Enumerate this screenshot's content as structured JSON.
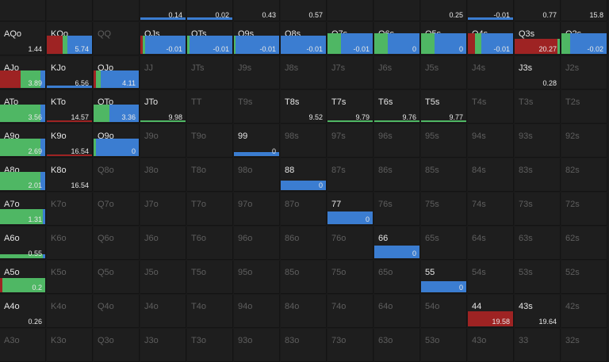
{
  "cols": 13,
  "colors": {
    "raise": "#3b7dd1",
    "call": "#4fb764",
    "fold": "#9e2323",
    "dim_text": "#5e5e5e",
    "active_text": "#e6e6e6"
  },
  "cells": [
    [
      "",
      "",
      "",
      {
        "v": "0.14",
        "bars": [
          {
            "c": "raise",
            "w": 1,
            "h": 0.1
          }
        ]
      },
      {
        "v": "0.02",
        "bars": [
          {
            "c": "raise",
            "w": 1,
            "h": 0.1
          }
        ]
      },
      {
        "v": "0.43"
      },
      {
        "v": "0.57"
      },
      {
        "v": ""
      },
      {
        "v": ""
      },
      {
        "v": "0.25"
      },
      {
        "v": "-0.01",
        "bars": [
          {
            "c": "raise",
            "w": 1,
            "h": 0.1
          }
        ]
      },
      {
        "v": "0.77"
      },
      {
        "v": "15.8"
      }
    ],
    [
      {
        "h": "AQo",
        "a": 1,
        "v": "1.44"
      },
      {
        "h": "KQo",
        "a": 1,
        "v": "5.74",
        "bars": [
          {
            "c": "fold",
            "w": 0.35,
            "h": 0.9
          },
          {
            "c": "call",
            "w": 0.1,
            "h": 0.9
          },
          {
            "c": "raise",
            "w": 0.55,
            "h": 0.9
          }
        ]
      },
      {
        "h": "QQ",
        "a": 0
      },
      {
        "h": "QJs",
        "a": 1,
        "v": "-0.01",
        "bars": [
          {
            "c": "fold",
            "w": 0.05,
            "h": 0.9
          },
          {
            "c": "call",
            "w": 0.05,
            "h": 0.9
          },
          {
            "c": "raise",
            "w": 0.9,
            "h": 0.9
          }
        ]
      },
      {
        "h": "QTs",
        "a": 1,
        "v": "-0.01",
        "bars": [
          {
            "c": "call",
            "w": 0.05,
            "h": 0.9
          },
          {
            "c": "raise",
            "w": 0.95,
            "h": 0.9
          }
        ]
      },
      {
        "h": "Q9s",
        "a": 1,
        "v": "-0.01",
        "bars": [
          {
            "c": "call",
            "w": 0.03,
            "h": 0.9
          },
          {
            "c": "raise",
            "w": 0.97,
            "h": 0.9
          }
        ]
      },
      {
        "h": "Q8s",
        "a": 1,
        "v": "-0.01",
        "bars": [
          {
            "c": "raise",
            "w": 1,
            "h": 0.9
          }
        ]
      },
      {
        "h": "Q7s",
        "a": 1,
        "v": "-0.01",
        "bars": [
          {
            "c": "call",
            "w": 0.3,
            "h": 1
          },
          {
            "c": "raise",
            "w": 0.7,
            "h": 1
          }
        ]
      },
      {
        "h": "Q6s",
        "a": 1,
        "v": "0",
        "bars": [
          {
            "c": "call",
            "w": 0.3,
            "h": 1
          },
          {
            "c": "raise",
            "w": 0.7,
            "h": 1
          }
        ]
      },
      {
        "h": "Q5s",
        "a": 1,
        "v": "0",
        "bars": [
          {
            "c": "call",
            "w": 0.3,
            "h": 1
          },
          {
            "c": "raise",
            "w": 0.7,
            "h": 1
          }
        ]
      },
      {
        "h": "Q4s",
        "a": 1,
        "v": "-0.01",
        "bars": [
          {
            "c": "fold",
            "w": 0.15,
            "h": 1
          },
          {
            "c": "call",
            "w": 0.15,
            "h": 1
          },
          {
            "c": "raise",
            "w": 0.7,
            "h": 1
          }
        ]
      },
      {
        "h": "Q3s",
        "a": 1,
        "v": "20.27",
        "bars": [
          {
            "c": "fold",
            "w": 0.95,
            "h": 0.75
          },
          {
            "c": "call",
            "w": 0.05,
            "h": 0.75
          }
        ]
      },
      {
        "h": "Q2s",
        "a": 1,
        "v": "-0.02",
        "bars": [
          {
            "c": "call",
            "w": 0.2,
            "h": 1
          },
          {
            "c": "raise",
            "w": 0.8,
            "h": 1
          }
        ]
      }
    ],
    [
      {
        "h": "AJo",
        "a": 1,
        "v": "3.89",
        "bars": [
          {
            "c": "fold",
            "w": 0.45,
            "h": 0.85
          },
          {
            "c": "call",
            "w": 0.45,
            "h": 0.85
          },
          {
            "c": "raise",
            "w": 0.1,
            "h": 0.85
          }
        ]
      },
      {
        "h": "KJo",
        "a": 1,
        "v": "6.56",
        "bars": [
          {
            "c": "raise",
            "w": 1,
            "h": 0.1
          }
        ]
      },
      {
        "h": "QJo",
        "a": 1,
        "v": "4.11",
        "bars": [
          {
            "c": "fold",
            "w": 0.05,
            "h": 0.85
          },
          {
            "c": "call",
            "w": 0.1,
            "h": 0.85
          },
          {
            "c": "raise",
            "w": 0.85,
            "h": 0.85
          }
        ]
      },
      {
        "h": "JJ",
        "a": 0
      },
      {
        "h": "JTs",
        "a": 0
      },
      {
        "h": "J9s",
        "a": 0
      },
      {
        "h": "J8s",
        "a": 0
      },
      {
        "h": "J7s",
        "a": 0
      },
      {
        "h": "J6s",
        "a": 0
      },
      {
        "h": "J5s",
        "a": 0
      },
      {
        "h": "J4s",
        "a": 0
      },
      {
        "h": "J3s",
        "a": 1,
        "v": "0.28"
      },
      {
        "h": "J2s",
        "a": 0
      }
    ],
    [
      {
        "h": "ATo",
        "a": 1,
        "v": "3.56",
        "bars": [
          {
            "c": "call",
            "w": 0.9,
            "h": 0.85
          },
          {
            "c": "raise",
            "w": 0.1,
            "h": 0.85
          }
        ]
      },
      {
        "h": "KTo",
        "a": 1,
        "v": "14.57",
        "bars": [
          {
            "c": "fold",
            "w": 1,
            "h": 0.06
          }
        ]
      },
      {
        "h": "QTo",
        "a": 1,
        "v": "3.36",
        "bars": [
          {
            "c": "call",
            "w": 0.35,
            "h": 0.85
          },
          {
            "c": "raise",
            "w": 0.65,
            "h": 0.85
          }
        ]
      },
      {
        "h": "JTo",
        "a": 1,
        "v": "9.98",
        "bars": [
          {
            "c": "call",
            "w": 1,
            "h": 0.06
          }
        ]
      },
      {
        "h": "TT",
        "a": 0
      },
      {
        "h": "T9s",
        "a": 0
      },
      {
        "h": "T8s",
        "a": 1,
        "v": "9.52"
      },
      {
        "h": "T7s",
        "a": 1,
        "v": "9.79",
        "bars": [
          {
            "c": "call",
            "w": 1,
            "h": 0.06
          }
        ]
      },
      {
        "h": "T6s",
        "a": 1,
        "v": "9.76",
        "bars": [
          {
            "c": "call",
            "w": 1,
            "h": 0.06
          }
        ]
      },
      {
        "h": "T5s",
        "a": 1,
        "v": "9.77",
        "bars": [
          {
            "c": "call",
            "w": 1,
            "h": 0.06
          }
        ]
      },
      {
        "h": "T4s",
        "a": 0
      },
      {
        "h": "T3s",
        "a": 0
      },
      {
        "h": "T2s",
        "a": 0
      }
    ],
    [
      {
        "h": "A9o",
        "a": 1,
        "v": "2.69",
        "bars": [
          {
            "c": "call",
            "w": 0.9,
            "h": 0.85
          },
          {
            "c": "raise",
            "w": 0.1,
            "h": 0.85
          }
        ]
      },
      {
        "h": "K9o",
        "a": 1,
        "v": "16.54",
        "bars": [
          {
            "c": "fold",
            "w": 1,
            "h": 0.06
          }
        ]
      },
      {
        "h": "Q9o",
        "a": 1,
        "v": "0",
        "bars": [
          {
            "c": "call",
            "w": 0.05,
            "h": 0.85
          },
          {
            "c": "raise",
            "w": 0.95,
            "h": 0.85
          }
        ]
      },
      {
        "h": "J9o",
        "a": 0
      },
      {
        "h": "T9o",
        "a": 0
      },
      {
        "h": "99",
        "a": 1,
        "v": "0",
        "bars": [
          {
            "c": "raise",
            "w": 1,
            "h": 0.2
          }
        ]
      },
      {
        "h": "98s",
        "a": 0
      },
      {
        "h": "97s",
        "a": 0
      },
      {
        "h": "96s",
        "a": 0
      },
      {
        "h": "95s",
        "a": 0
      },
      {
        "h": "94s",
        "a": 0
      },
      {
        "h": "93s",
        "a": 0
      },
      {
        "h": "92s",
        "a": 0
      }
    ],
    [
      {
        "h": "A8o",
        "a": 1,
        "v": "2.01",
        "bars": [
          {
            "c": "call",
            "w": 0.9,
            "h": 0.9
          },
          {
            "c": "raise",
            "w": 0.1,
            "h": 0.9
          }
        ]
      },
      {
        "h": "K8o",
        "a": 1,
        "v": "16.54"
      },
      {
        "h": "Q8o",
        "a": 0
      },
      {
        "h": "J8o",
        "a": 0
      },
      {
        "h": "T8o",
        "a": 0
      },
      {
        "h": "98o",
        "a": 0
      },
      {
        "h": "88",
        "a": 1,
        "v": "0",
        "bars": [
          {
            "c": "raise",
            "w": 1,
            "h": 0.45
          }
        ]
      },
      {
        "h": "87s",
        "a": 0
      },
      {
        "h": "86s",
        "a": 0
      },
      {
        "h": "85s",
        "a": 0
      },
      {
        "h": "84s",
        "a": 0
      },
      {
        "h": "83s",
        "a": 0
      },
      {
        "h": "82s",
        "a": 0
      }
    ],
    [
      {
        "h": "A7o",
        "a": 1,
        "v": "1.31",
        "bars": [
          {
            "c": "call",
            "w": 0.95,
            "h": 0.75
          },
          {
            "c": "raise",
            "w": 0.05,
            "h": 0.75
          }
        ]
      },
      {
        "h": "K7o",
        "a": 0
      },
      {
        "h": "Q7o",
        "a": 0
      },
      {
        "h": "J7o",
        "a": 0
      },
      {
        "h": "T7o",
        "a": 0
      },
      {
        "h": "97o",
        "a": 0
      },
      {
        "h": "87o",
        "a": 0
      },
      {
        "h": "77",
        "a": 1,
        "v": "0",
        "bars": [
          {
            "c": "raise",
            "w": 1,
            "h": 0.6
          }
        ]
      },
      {
        "h": "76s",
        "a": 0
      },
      {
        "h": "75s",
        "a": 0
      },
      {
        "h": "74s",
        "a": 0
      },
      {
        "h": "73s",
        "a": 0
      },
      {
        "h": "72s",
        "a": 0
      }
    ],
    [
      {
        "h": "A6o",
        "a": 1,
        "v": "0.55",
        "bars": [
          {
            "c": "call",
            "w": 0.95,
            "h": 0.2
          },
          {
            "c": "raise",
            "w": 0.05,
            "h": 0.2
          }
        ]
      },
      {
        "h": "K6o",
        "a": 0
      },
      {
        "h": "Q6o",
        "a": 0
      },
      {
        "h": "J6o",
        "a": 0
      },
      {
        "h": "T6o",
        "a": 0
      },
      {
        "h": "96o",
        "a": 0
      },
      {
        "h": "86o",
        "a": 0
      },
      {
        "h": "76o",
        "a": 0
      },
      {
        "h": "66",
        "a": 1,
        "v": "0",
        "bars": [
          {
            "c": "raise",
            "w": 1,
            "h": 0.6
          }
        ]
      },
      {
        "h": "65s",
        "a": 0
      },
      {
        "h": "64s",
        "a": 0
      },
      {
        "h": "63s",
        "a": 0
      },
      {
        "h": "62s",
        "a": 0
      }
    ],
    [
      {
        "h": "A5o",
        "a": 1,
        "v": "0.2",
        "bars": [
          {
            "c": "fold",
            "w": 0.05,
            "h": 0.7
          },
          {
            "c": "call",
            "w": 0.95,
            "h": 0.7
          }
        ]
      },
      {
        "h": "K5o",
        "a": 0
      },
      {
        "h": "Q5o",
        "a": 0
      },
      {
        "h": "J5o",
        "a": 0
      },
      {
        "h": "T5o",
        "a": 0
      },
      {
        "h": "95o",
        "a": 0
      },
      {
        "h": "85o",
        "a": 0
      },
      {
        "h": "75o",
        "a": 0
      },
      {
        "h": "65o",
        "a": 0
      },
      {
        "h": "55",
        "a": 1,
        "v": "0",
        "bars": [
          {
            "c": "raise",
            "w": 1,
            "h": 0.55
          }
        ]
      },
      {
        "h": "54s",
        "a": 0
      },
      {
        "h": "53s",
        "a": 0
      },
      {
        "h": "52s",
        "a": 0
      }
    ],
    [
      {
        "h": "A4o",
        "a": 1,
        "v": "0.26"
      },
      {
        "h": "K4o",
        "a": 0
      },
      {
        "h": "Q4o",
        "a": 0
      },
      {
        "h": "J4o",
        "a": 0
      },
      {
        "h": "T4o",
        "a": 0
      },
      {
        "h": "94o",
        "a": 0
      },
      {
        "h": "84o",
        "a": 0
      },
      {
        "h": "74o",
        "a": 0
      },
      {
        "h": "64o",
        "a": 0
      },
      {
        "h": "54o",
        "a": 0
      },
      {
        "h": "44",
        "a": 1,
        "v": "19.58",
        "bars": [
          {
            "c": "fold",
            "w": 1,
            "h": 0.75
          }
        ]
      },
      {
        "h": "43s",
        "a": 1,
        "v": "19.64"
      },
      {
        "h": "42s",
        "a": 0
      }
    ],
    [
      {
        "h": "A3o",
        "a": 0
      },
      {
        "h": "K3o",
        "a": 0
      },
      {
        "h": "Q3o",
        "a": 0
      },
      {
        "h": "J3o",
        "a": 0
      },
      {
        "h": "T3o",
        "a": 0
      },
      {
        "h": "93o",
        "a": 0
      },
      {
        "h": "83o",
        "a": 0
      },
      {
        "h": "73o",
        "a": 0
      },
      {
        "h": "63o",
        "a": 0
      },
      {
        "h": "53o",
        "a": 0
      },
      {
        "h": "43o",
        "a": 0
      },
      {
        "h": "33",
        "a": 0
      },
      {
        "h": "32s",
        "a": 0
      }
    ]
  ]
}
